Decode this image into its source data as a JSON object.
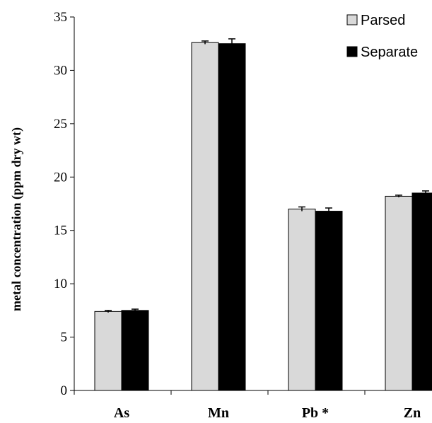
{
  "chart_data": {
    "type": "bar",
    "title": "",
    "xlabel": "",
    "ylabel": "metal concentration (ppm dry wt)",
    "ylim": [
      0,
      35
    ],
    "yticks": [
      0,
      5,
      10,
      15,
      20,
      25,
      30,
      35
    ],
    "grid": false,
    "legend_position": "top-right",
    "categories": [
      "As",
      "Mn",
      "Pb*",
      "Zn"
    ],
    "category_labels": [
      "As",
      "Mn",
      "Pb *",
      "Zn"
    ],
    "series": [
      {
        "name": "Parsed",
        "color": "#d9d9d9",
        "values": [
          7.4,
          32.6,
          17.0,
          18.2
        ],
        "errors": [
          0.1,
          0.15,
          0.2,
          0.1
        ]
      },
      {
        "name": "Separate",
        "color": "#000000",
        "values": [
          7.5,
          32.5,
          16.8,
          18.5
        ],
        "errors": [
          0.12,
          0.45,
          0.3,
          0.2
        ]
      }
    ]
  }
}
